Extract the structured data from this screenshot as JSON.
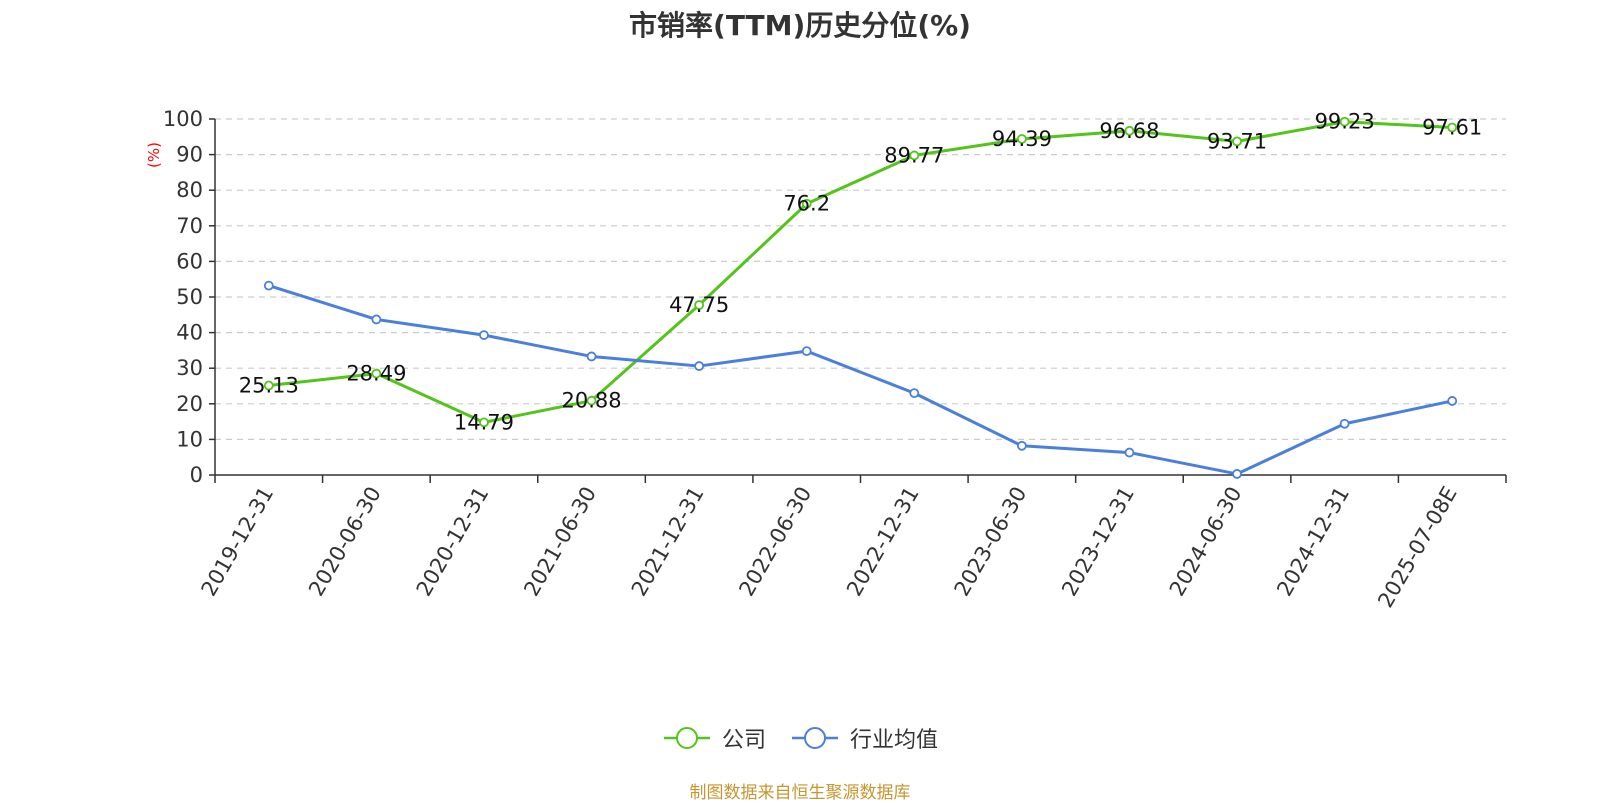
{
  "chart_data": {
    "type": "line",
    "title": "市销率(TTM)历史分位(%)",
    "ylabel": "(%)",
    "ylim": [
      0,
      100
    ],
    "yticks": [
      0,
      10,
      20,
      30,
      40,
      50,
      60,
      70,
      80,
      90,
      100
    ],
    "categories": [
      "2019-12-31",
      "2020-06-30",
      "2020-12-31",
      "2021-06-30",
      "2021-12-31",
      "2022-06-30",
      "2022-12-31",
      "2023-06-30",
      "2023-12-31",
      "2024-06-30",
      "2024-12-31",
      "2025-07-08E"
    ],
    "series": [
      {
        "name": "公司",
        "color": "#52c41a",
        "show_labels": true,
        "values": [
          25.13,
          28.49,
          14.79,
          20.88,
          47.75,
          76.2,
          89.77,
          94.39,
          96.68,
          93.71,
          99.23,
          97.61
        ]
      },
      {
        "name": "行业均值",
        "color": "#4a7fdc",
        "show_labels": false,
        "values": [
          53.2,
          43.7,
          39.3,
          33.3,
          30.6,
          34.8,
          23.0,
          8.2,
          6.3,
          0.3,
          14.4,
          20.8
        ]
      }
    ],
    "grid": true,
    "legend_position": "bottom-center"
  },
  "colors": {
    "title": "#333333",
    "axis": "#333333",
    "grid": "#cccccc",
    "ylabel": "#ff0000",
    "source": "#c8962e"
  },
  "source_text": "制图数据来自恒生聚源数据库"
}
